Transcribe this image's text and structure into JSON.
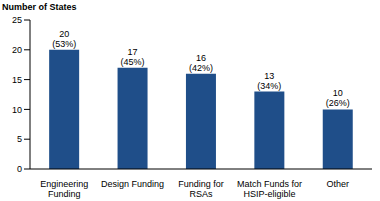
{
  "chart_data": {
    "type": "bar",
    "ylabel": "Number of States",
    "categories": [
      "Engineering Funding",
      "Design Funding",
      "Funding for RSAs",
      "Match Funds for HSIP-eligible",
      "Other"
    ],
    "values": [
      20,
      17,
      16,
      13,
      10
    ],
    "value_labels": [
      "20 (53%)",
      "17 (45%)",
      "16 (42%)",
      "13 (34%)",
      "10 (26%)"
    ],
    "data_labels": true,
    "color": "#1f4e89",
    "ylim": [
      0,
      25
    ],
    "yticks": [
      0,
      5,
      10,
      15,
      20,
      25
    ],
    "grid": false
  }
}
